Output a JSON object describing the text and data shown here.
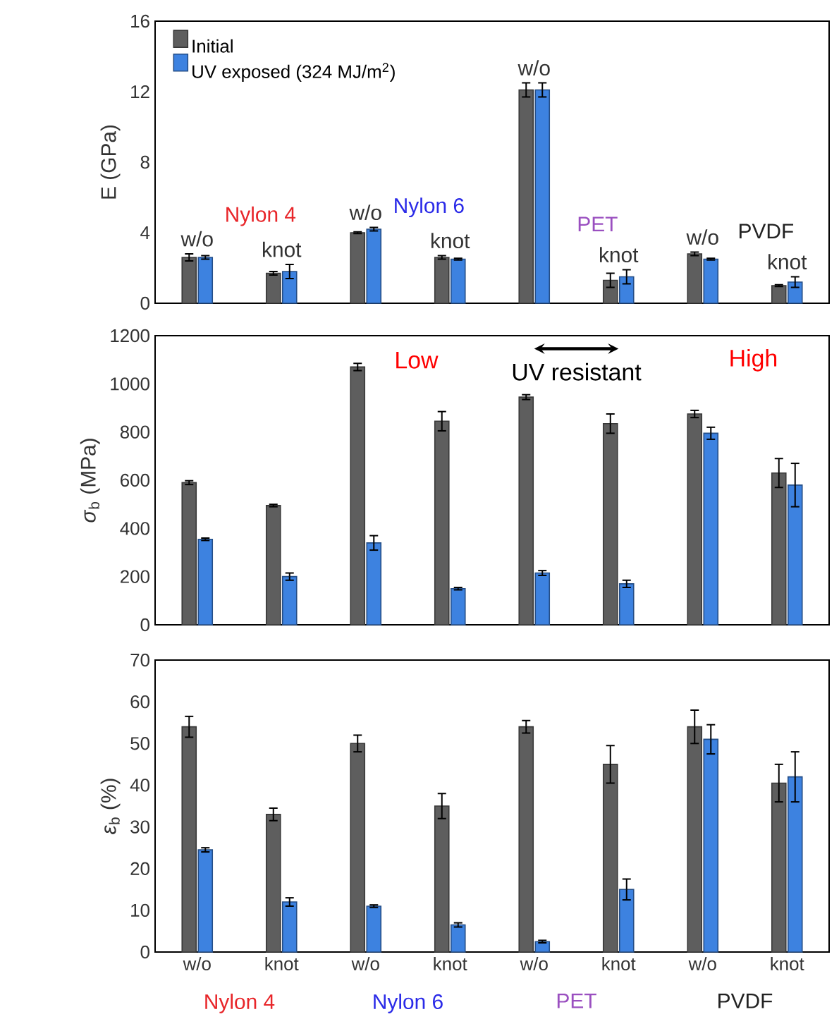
{
  "chart_data": [
    {
      "type": "bar",
      "ylabel": "E (GPa)",
      "categories": [
        "w/o",
        "knot",
        "w/o",
        "knot",
        "w/o",
        "knot",
        "w/o",
        "knot"
      ],
      "tick_labels": "y",
      "legend": "top left",
      "series": [
        {
          "name": "Initial",
          "color": "#5e5e5e",
          "values": [
            2.6,
            1.7,
            4.0,
            2.6,
            12.1,
            1.3,
            2.8,
            1.0
          ],
          "errors": [
            0.2,
            0.1,
            0.05,
            0.1,
            0.4,
            0.4,
            0.1,
            0.05
          ]
        },
        {
          "name": "UV exposed (324 MJ/m$^{2}$)",
          "color": "#3d82e0",
          "values": [
            2.6,
            1.8,
            4.2,
            2.5,
            12.1,
            1.5,
            2.5,
            1.2
          ],
          "errors": [
            0.1,
            0.4,
            0.1,
            0.05,
            0.4,
            0.4,
            0.05,
            0.3
          ]
        }
      ],
      "ylim": [
        0,
        16
      ],
      "yticks": [
        0,
        4,
        8,
        12,
        16
      ],
      "annotations": [
        "Nylon 4",
        "Nylon 6",
        "PET",
        "PVDF"
      ]
    },
    {
      "type": "bar",
      "ylabel": "*σ*$_{b}$ (MPa)",
      "categories": [
        null,
        null,
        null,
        null,
        null,
        null,
        null,
        null
      ],
      "tick_labels": "y",
      "series": [
        {
          "color": "#5e5e5e",
          "values": [
            590,
            495,
            1070,
            845,
            945,
            835,
            875,
            630
          ],
          "errors": [
            8,
            5,
            15,
            40,
            10,
            40,
            15,
            60
          ]
        },
        {
          "color": "#3d82e0",
          "values": [
            355,
            200,
            340,
            150,
            215,
            170,
            795,
            580
          ],
          "errors": [
            5,
            15,
            30,
            5,
            10,
            15,
            25,
            90
          ]
        }
      ],
      "ylim": [
        0,
        1200
      ],
      "yticks": [
        0,
        200,
        400,
        600,
        800,
        1000,
        1200
      ],
      "annotations": [
        "Low",
        "UV resistant",
        "High"
      ]
    },
    {
      "type": "bar",
      "ylabel": "*ε*$_{b}$ (%)",
      "categories": [
        "w/o",
        "knot",
        "w/o",
        "knot",
        "w/o",
        "knot",
        "w/o",
        "knot"
      ],
      "series": [
        {
          "color": "#5e5e5e",
          "values": [
            54,
            33,
            50,
            35,
            54,
            45,
            54,
            40.5
          ],
          "errors": [
            2.5,
            1.5,
            2,
            3,
            1.5,
            4.5,
            4,
            4.5
          ]
        },
        {
          "color": "#3d82e0",
          "values": [
            24.5,
            12,
            11,
            6.5,
            2.5,
            15,
            51,
            42
          ],
          "errors": [
            0.5,
            1,
            0.3,
            0.5,
            0.3,
            2.5,
            3.5,
            6
          ]
        }
      ],
      "ylim": [
        0,
        70
      ],
      "yticks": [
        0,
        10,
        20,
        30,
        40,
        50,
        60,
        70
      ],
      "annotations": [
        "Nylon 4",
        "Nylon 6",
        "PET",
        "PVDF"
      ]
    }
  ]
}
